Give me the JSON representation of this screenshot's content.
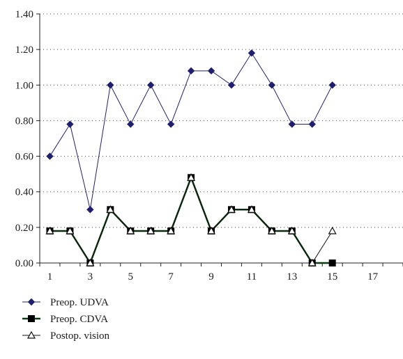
{
  "chart_data": {
    "type": "line",
    "title": "",
    "xlabel": "",
    "ylabel": "",
    "x": [
      1,
      2,
      3,
      4,
      5,
      6,
      7,
      8,
      9,
      10,
      11,
      12,
      13,
      14,
      15
    ],
    "xlim": [
      0.5,
      18.5
    ],
    "x_ticks": [
      1,
      3,
      5,
      7,
      9,
      11,
      13,
      15,
      17
    ],
    "ylim": [
      0,
      1.4
    ],
    "y_ticks": [
      "0.00",
      "0.20",
      "0.40",
      "0.60",
      "0.80",
      "1.00",
      "1.20",
      "1.40"
    ],
    "grid": "horizontal dotted",
    "legend_position": "bottom-left",
    "series": [
      {
        "name": "Preop. UDVA",
        "values": [
          0.6,
          0.78,
          0.3,
          1.0,
          0.78,
          1.0,
          0.78,
          1.08,
          1.08,
          1.0,
          1.18,
          1.0,
          0.78,
          0.78,
          1.0
        ],
        "color": "#1f1f6e",
        "marker": "diamond"
      },
      {
        "name": "Preop. CDVA",
        "values": [
          0.18,
          0.18,
          0.0,
          0.3,
          0.18,
          0.18,
          0.18,
          0.48,
          0.18,
          0.3,
          0.3,
          0.18,
          0.18,
          0.0,
          0.0
        ],
        "color": "#0d3d12",
        "marker": "square"
      },
      {
        "name": "Postop. vision",
        "values": [
          0.18,
          0.18,
          0.0,
          0.3,
          0.18,
          0.18,
          0.18,
          0.48,
          0.18,
          0.3,
          0.3,
          0.18,
          0.18,
          0.0,
          0.18
        ],
        "color": "#111111",
        "marker": "triangle-open"
      }
    ]
  }
}
